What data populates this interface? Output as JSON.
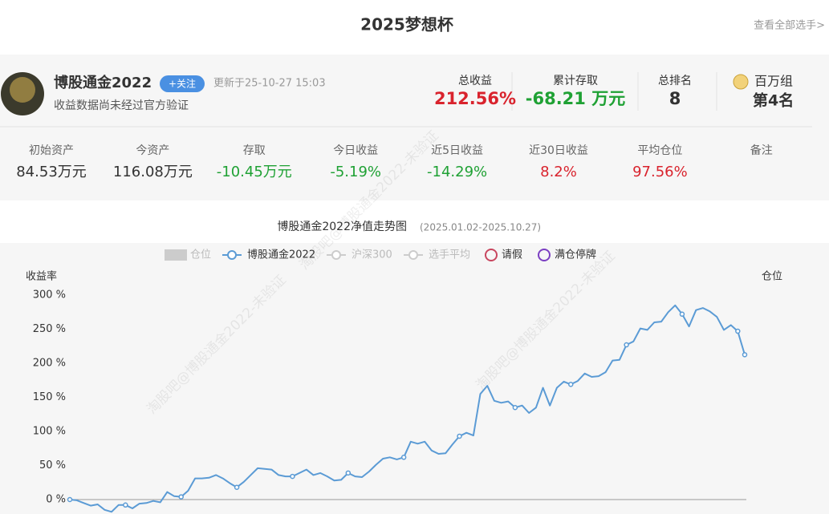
{
  "header": {
    "title": "2025梦想杯",
    "link": "查看全部选手>"
  },
  "watermark": "淘股吧@博股通金2022-未验证",
  "profile": {
    "name": "博股通金2022",
    "follow": "+关注",
    "updated": "更新于25-10-27 15:03",
    "note": "收益数据尚未经过官方验证",
    "summary": [
      {
        "label": "总收益",
        "value": "212.56%",
        "color": "#d9232d"
      },
      {
        "label": "累计存取",
        "value": "-68.21 万元",
        "color": "#1fa134"
      },
      {
        "label": "总排名",
        "value": "8",
        "color": "#333333"
      },
      {
        "label": "百万组",
        "value": "第4名",
        "color": "#333333"
      }
    ],
    "metrics": [
      {
        "label": "初始资产",
        "value": "84.53万元",
        "color": "#333333"
      },
      {
        "label": "今资产",
        "value": "116.08万元",
        "color": "#333333"
      },
      {
        "label": "存取",
        "value": "-10.45万元",
        "color": "#1fa134"
      },
      {
        "label": "今日收益",
        "value": "-5.19%",
        "color": "#1fa134"
      },
      {
        "label": "近5日收益",
        "value": "-14.29%",
        "color": "#1fa134"
      },
      {
        "label": "近30日收益",
        "value": "8.2%",
        "color": "#d9232d"
      },
      {
        "label": "平均仓位",
        "value": "97.56%",
        "color": "#d9232d"
      },
      {
        "label": "备注"
      }
    ]
  },
  "chart_data": {
    "type": "line",
    "title": "博股通金2022净值走势图",
    "subtitle": "(2025.01.02-2025.10.27)",
    "y_label": "收益率",
    "y2_label": "仓位",
    "ylim": [
      -20,
      300
    ],
    "yticks": [
      {
        "value": 0,
        "label": "0 %"
      },
      {
        "value": 50,
        "label": "50 %"
      },
      {
        "value": 100,
        "label": "100 %"
      },
      {
        "value": 150,
        "label": "150 %"
      },
      {
        "value": 200,
        "label": "200 %"
      },
      {
        "value": 250,
        "label": "250 %"
      },
      {
        "value": 300,
        "label": "300 %"
      }
    ],
    "grid": false,
    "series": [
      {
        "name": "仓位",
        "color": "#cccccc",
        "visible": false,
        "marker": "rect"
      },
      {
        "name": "博股通金2022",
        "color": "#5b9bd5",
        "visible": true,
        "marker": "circle",
        "values": [
          0,
          -1,
          -5,
          -9,
          -7,
          -15,
          -18,
          -8,
          -8,
          -13,
          -6,
          -5,
          -2,
          -4,
          11,
          5,
          4,
          13,
          31,
          31,
          32,
          36,
          31,
          24,
          18,
          26,
          36,
          46,
          45,
          44,
          36,
          34,
          34,
          39,
          44,
          36,
          39,
          34,
          28,
          29,
          39,
          34,
          33,
          41,
          51,
          60,
          62,
          59,
          62,
          85,
          82,
          85,
          72,
          67,
          68,
          81,
          93,
          98,
          94,
          155,
          167,
          145,
          142,
          144,
          135,
          138,
          127,
          135,
          164,
          138,
          164,
          173,
          169,
          174,
          185,
          180,
          181,
          187,
          204,
          205,
          227,
          232,
          251,
          249,
          260,
          261,
          275,
          285,
          272,
          254,
          278,
          281,
          276,
          268,
          249,
          256,
          247,
          212.56
        ]
      },
      {
        "name": "沪深300",
        "color": "#cccccc",
        "visible": false,
        "marker": "circle"
      },
      {
        "name": "选手平均",
        "color": "#cccccc",
        "visible": false,
        "marker": "circle"
      },
      {
        "name": "请假",
        "color": "#c8465f",
        "visible": true,
        "marker": "dot"
      },
      {
        "name": "满仓停牌",
        "color": "#7b3fc2",
        "visible": true,
        "marker": "dot"
      }
    ]
  }
}
